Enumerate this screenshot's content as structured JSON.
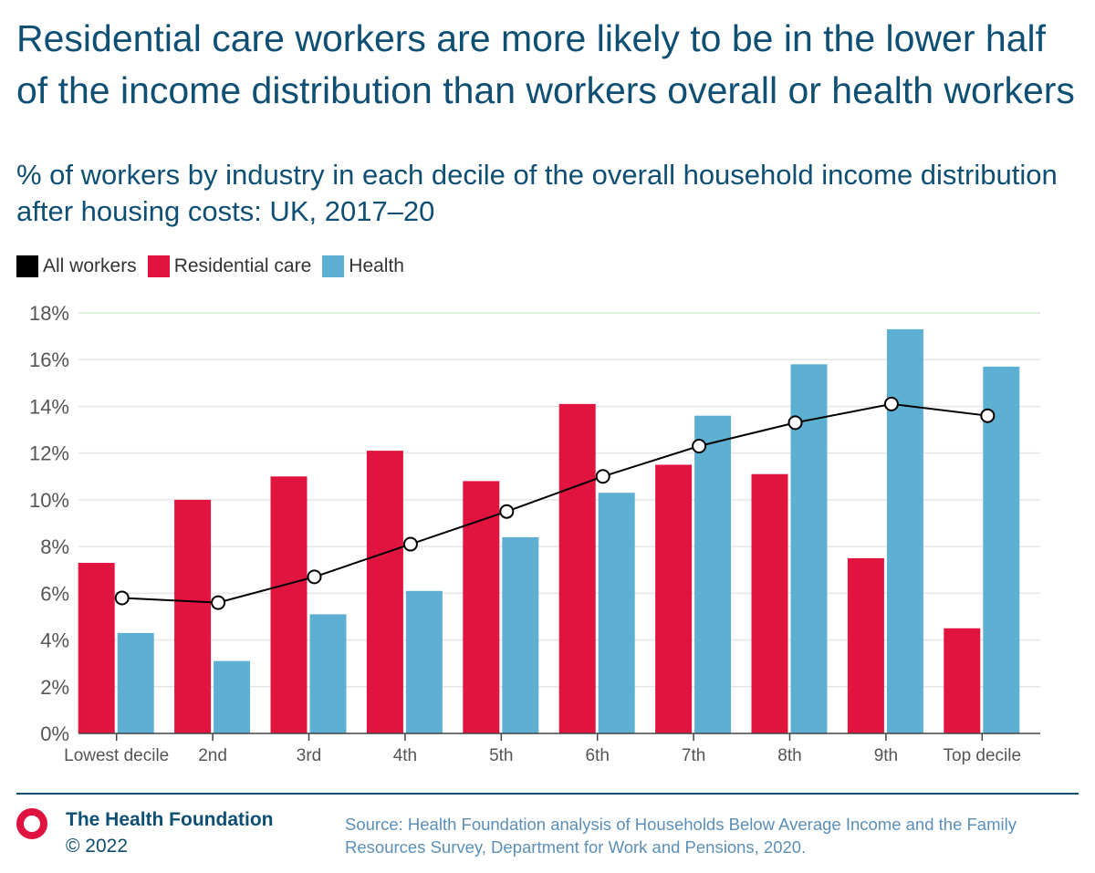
{
  "title": "Residential care workers are more likely to be in the lower half of the income distribution than workers overall or health workers",
  "subtitle": "% of workers by industry in each decile of the overall household income distribution after housing costs: UK, 2017–20",
  "legend": [
    {
      "label": "All workers",
      "color": "#000000"
    },
    {
      "label": "Residential care",
      "color": "#e0143f"
    },
    {
      "label": "Health",
      "color": "#5eb0d3"
    }
  ],
  "chart_data": {
    "type": "bar",
    "categories": [
      "Lowest decile",
      "2nd",
      "3rd",
      "4th",
      "5th",
      "6th",
      "7th",
      "8th",
      "9th",
      "Top decile"
    ],
    "series": [
      {
        "name": "Residential care",
        "kind": "bar",
        "color": "#e0143f",
        "values": [
          7.3,
          10.0,
          11.0,
          12.1,
          10.8,
          14.1,
          11.5,
          11.1,
          7.5,
          4.5
        ]
      },
      {
        "name": "Health",
        "kind": "bar",
        "color": "#5eb0d3",
        "values": [
          4.3,
          3.1,
          5.1,
          6.1,
          8.4,
          10.3,
          13.6,
          15.8,
          17.3,
          15.7
        ]
      },
      {
        "name": "All workers",
        "kind": "line",
        "color": "#000000",
        "values": [
          5.8,
          5.6,
          6.7,
          8.1,
          9.5,
          11.0,
          12.3,
          13.3,
          14.1,
          13.6
        ]
      }
    ],
    "y_ticks": [
      "0%",
      "2%",
      "4%",
      "6%",
      "8%",
      "10%",
      "12%",
      "14%",
      "16%",
      "18%"
    ],
    "ylim": [
      0,
      18
    ],
    "xlabel": "",
    "ylabel": "",
    "grid": true,
    "legend_position": "top-left"
  },
  "footer": {
    "brand": "The Health Foundation",
    "copyright": "© 2022",
    "source": "Source: Health Foundation analysis of Households Below Average Income and the Family Resources Survey, Department for Work and Pensions, 2020."
  }
}
